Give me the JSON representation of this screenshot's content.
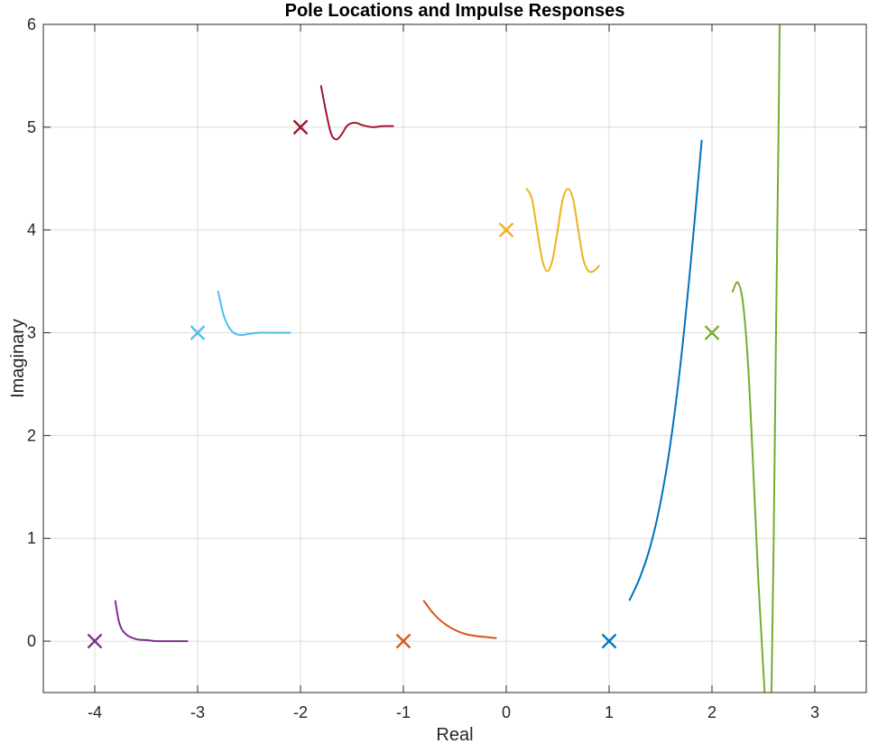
{
  "chart_data": {
    "type": "line",
    "title": "Pole Locations and Impulse Responses",
    "xlabel": "Real",
    "ylabel": "Imaginary",
    "xlim": [
      -4.5,
      3.5
    ],
    "ylim": [
      -0.5,
      6
    ],
    "xticks": [
      -4,
      -3,
      -2,
      -1,
      0,
      1,
      2,
      3
    ],
    "yticks": [
      0,
      1,
      2,
      3,
      4,
      5,
      6
    ],
    "xtick_labels": [
      "-4",
      "-3",
      "-2",
      "-1",
      "0",
      "1",
      "2",
      "3"
    ],
    "ytick_labels": [
      "0",
      "1",
      "2",
      "3",
      "4",
      "5",
      "6"
    ],
    "grid": true,
    "pole_marker": "x",
    "poles": [
      {
        "real": -4,
        "imag": 0,
        "color": "#7E2F8E"
      },
      {
        "real": -3,
        "imag": 3,
        "color": "#4DBEEE"
      },
      {
        "real": -2,
        "imag": 5,
        "color": "#A2142F"
      },
      {
        "real": -1,
        "imag": 0,
        "color": "#D95319"
      },
      {
        "real": 0,
        "imag": 4,
        "color": "#EDB120"
      },
      {
        "real": 1,
        "imag": 0,
        "color": "#0072BD"
      },
      {
        "real": 2,
        "imag": 3,
        "color": "#77AC30"
      }
    ],
    "series": [
      {
        "color": "#7E2F8E",
        "x": [
          -3.8,
          -3.76,
          -3.7,
          -3.6,
          -3.5,
          -3.4,
          -3.3,
          -3.2,
          -3.1
        ],
        "y": [
          0.39,
          0.17,
          0.07,
          0.02,
          0.01,
          0.0,
          0.0,
          0.0,
          0.0
        ]
      },
      {
        "color": "#4DBEEE",
        "x": [
          -2.8,
          -2.75,
          -2.7,
          -2.65,
          -2.6,
          -2.55,
          -2.5,
          -2.4,
          -2.3,
          -2.2,
          -2.1
        ],
        "y": [
          3.4,
          3.18,
          3.06,
          3.0,
          2.98,
          2.98,
          2.99,
          3.0,
          3.0,
          3.0,
          3.0
        ]
      },
      {
        "color": "#A2142F",
        "x": [
          -1.8,
          -1.75,
          -1.7,
          -1.65,
          -1.6,
          -1.55,
          -1.5,
          -1.45,
          -1.4,
          -1.3,
          -1.2,
          -1.1
        ],
        "y": [
          5.4,
          5.14,
          4.93,
          4.88,
          4.93,
          5.01,
          5.04,
          5.04,
          5.02,
          5.0,
          5.01,
          5.01
        ]
      },
      {
        "color": "#D95319",
        "x": [
          -0.8,
          -0.7,
          -0.6,
          -0.5,
          -0.4,
          -0.3,
          -0.2,
          -0.1
        ],
        "y": [
          0.39,
          0.26,
          0.17,
          0.11,
          0.07,
          0.05,
          0.04,
          0.03
        ]
      },
      {
        "color": "#EDB120",
        "x": [
          0.2,
          0.25,
          0.3,
          0.35,
          0.4,
          0.45,
          0.5,
          0.55,
          0.6,
          0.65,
          0.7,
          0.75,
          0.8,
          0.85,
          0.9
        ],
        "y": [
          4.4,
          4.3,
          4.0,
          3.71,
          3.6,
          3.71,
          4.0,
          4.3,
          4.4,
          4.3,
          4.0,
          3.71,
          3.6,
          3.6,
          3.65
        ]
      },
      {
        "color": "#0072BD",
        "x": [
          1.2,
          1.3,
          1.4,
          1.5,
          1.6,
          1.7,
          1.8,
          1.9
        ],
        "y": [
          0.4,
          0.62,
          0.92,
          1.35,
          1.95,
          2.75,
          3.75,
          4.87
        ]
      },
      {
        "color": "#77AC30",
        "x": [
          2.2,
          2.25,
          2.3,
          2.35,
          2.4,
          2.45,
          2.5,
          2.55,
          2.58,
          2.6,
          2.62,
          2.65,
          2.66
        ],
        "y": [
          3.4,
          3.49,
          3.3,
          2.7,
          1.7,
          0.6,
          -0.3,
          -1.0,
          -0.4,
          1.0,
          2.8,
          5.2,
          6.2
        ]
      }
    ]
  }
}
